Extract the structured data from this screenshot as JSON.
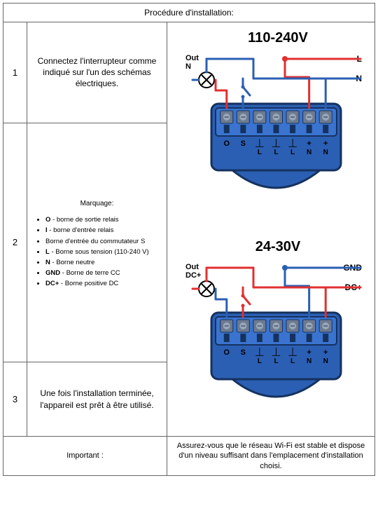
{
  "title": "Procédure d'installation:",
  "steps": {
    "s1": {
      "num": "1",
      "text": "Connectez l'interrupteur comme indiqué sur l'un des schémas électriques."
    },
    "s2": {
      "num": "2",
      "label": "Marquage:",
      "legend": {
        "o": {
          "sym": "O",
          "desc": " - borne de sortie relais"
        },
        "i": {
          "sym": "I",
          "desc": " - borne d'entrée relais"
        },
        "s": {
          "desc": "Borne d'entrée du commutateur S"
        },
        "l": {
          "sym": "L",
          "desc": " - Borne sous tension (110-240 V)"
        },
        "n": {
          "sym": "N",
          "desc": " - Borne neutre"
        },
        "gnd": {
          "sym": "GND",
          "desc": " - Borne de terre CC"
        },
        "dcp": {
          "sym": "DC+",
          "desc": " - Borne positive DC"
        }
      }
    },
    "s3": {
      "num": "3",
      "text": "Une fois l'installation terminée, l'appareil est prêt à être utilisé."
    }
  },
  "important": {
    "label": "Important :",
    "text": "Assurez-vous que le réseau Wi-Fi est stable et dispose d'un niveau suffisant dans l'emplacement d'installation choisi."
  },
  "diagrams": {
    "ac": {
      "title": "110-240V",
      "out_label": "Out",
      "out_sub": "N",
      "right_top": "L",
      "right_bot": "N",
      "terminals": [
        "O",
        "S",
        "⏊",
        "⏊",
        "⏊",
        "+",
        "+"
      ],
      "terminals_sub": [
        "",
        "",
        "L",
        "L",
        "L",
        "N",
        "N"
      ]
    },
    "dc": {
      "title": "24-30V",
      "out_label": "Out",
      "out_sub": "DC+",
      "right_top": "GND",
      "right_bot": "DC+",
      "terminals": [
        "O",
        "S",
        "⏊",
        "⏊",
        "⏊",
        "+",
        "+"
      ],
      "terminals_sub": [
        "",
        "",
        "L",
        "L",
        "L",
        "N",
        "N"
      ]
    },
    "colors": {
      "device_body": "#2b5fb3",
      "device_edge": "#15325f",
      "device_inner": "#3a74d0",
      "terminal": "#6c7a8f",
      "screw": "#9aa7b8",
      "wire_red": "#e03030",
      "wire_blue": "#2b5fb3",
      "text": "#000000"
    }
  }
}
